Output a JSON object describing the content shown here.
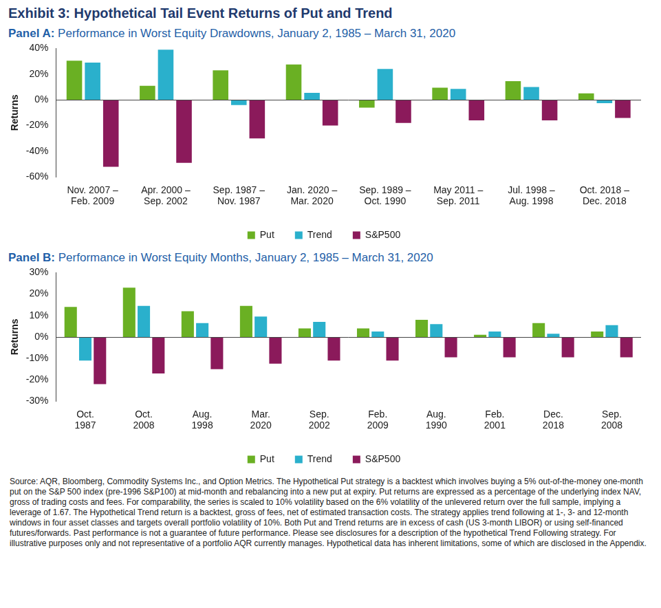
{
  "header": {
    "title": "Exhibit 3: Hypothetical Tail Event Returns of Put and Trend"
  },
  "chart_data": [
    {
      "type": "bar",
      "panel": "Panel A:",
      "title": "Performance in Worst Equity Drawdowns, January 2, 1985 – March 31, 2020",
      "y_label": "Returns",
      "categories": [
        [
          "Nov. 2007 –",
          "Feb. 2009"
        ],
        [
          "Apr. 2000 –",
          "Sep. 2002"
        ],
        [
          "Sep. 1987 –",
          "Nov. 1987"
        ],
        [
          "Jan. 2020 –",
          "Mar. 2020"
        ],
        [
          "Sep. 1989 –",
          "Oct. 1990"
        ],
        [
          "May 2011 –",
          "Sep. 2011"
        ],
        [
          "Jul. 1998 –",
          "Aug. 1998"
        ],
        [
          "Oct. 2018 –",
          "Dec. 2018"
        ]
      ],
      "series": [
        {
          "name": "Put",
          "color": "#6ab023",
          "values": [
            30.5,
            11,
            23,
            27.5,
            -6,
            9.5,
            14.5,
            5
          ]
        },
        {
          "name": "Trend",
          "color": "#2ab0cc",
          "values": [
            29,
            39,
            -4,
            5.5,
            24,
            8.5,
            10,
            -2.5
          ]
        },
        {
          "name": "S&P500",
          "color": "#8b1a5b",
          "values": [
            -52,
            -49,
            -30,
            -20,
            -18,
            -16,
            -16,
            -14
          ]
        }
      ],
      "ylim": [
        -60,
        40
      ],
      "yticks": [
        {
          "value": -60,
          "label": "-60%"
        },
        {
          "value": -40,
          "label": "-40%"
        },
        {
          "value": -20,
          "label": "-20%"
        },
        {
          "value": 0,
          "label": "0%"
        },
        {
          "value": 20,
          "label": "20%"
        },
        {
          "value": 40,
          "label": "40%"
        }
      ],
      "grid": false,
      "legend": "bottom"
    },
    {
      "type": "bar",
      "panel": "Panel B:",
      "title": "Performance in Worst Equity Months, January 2, 1985 – March 31, 2020",
      "y_label": "Returns",
      "categories": [
        [
          "Oct.",
          "1987"
        ],
        [
          "Oct.",
          "2008"
        ],
        [
          "Aug.",
          "1998"
        ],
        [
          "Mar.",
          "2020"
        ],
        [
          "Sep.",
          "2002"
        ],
        [
          "Feb.",
          "2009"
        ],
        [
          "Aug.",
          "1990"
        ],
        [
          "Feb.",
          "2001"
        ],
        [
          "Dec.",
          "2018"
        ],
        [
          "Sep.",
          "2008"
        ]
      ],
      "series": [
        {
          "name": "Put",
          "color": "#6ab023",
          "values": [
            14,
            23,
            12,
            14.5,
            4,
            4,
            8,
            1,
            6.5,
            2.5
          ]
        },
        {
          "name": "Trend",
          "color": "#2ab0cc",
          "values": [
            -11,
            14.5,
            6.5,
            9.5,
            7,
            2.5,
            6,
            2.5,
            1.5,
            5.5
          ]
        },
        {
          "name": "S&P500",
          "color": "#8b1a5b",
          "values": [
            -22,
            -17,
            -15,
            -12.5,
            -11,
            -11,
            -9.5,
            -9.5,
            -9.5,
            -9.5
          ]
        }
      ],
      "ylim": [
        -30,
        30
      ],
      "yticks": [
        {
          "value": -30,
          "label": "-30%"
        },
        {
          "value": -20,
          "label": "-20%"
        },
        {
          "value": -10,
          "label": "-10%"
        },
        {
          "value": 0,
          "label": "0%"
        },
        {
          "value": 10,
          "label": "10%"
        },
        {
          "value": 20,
          "label": "20%"
        },
        {
          "value": 30,
          "label": "30%"
        }
      ],
      "grid": false,
      "legend": "bottom"
    }
  ],
  "footnote": "Source: AQR, Bloomberg, Commodity Systems Inc., and Option Metrics. The Hypothetical Put strategy is a backtest which involves buying a 5% out-of-the-money one-month put on the S&P 500 index (pre-1996 S&P100) at mid-month and rebalancing into a new put at expiry. Put returns are expressed as a percentage of the underlying index NAV, gross of trading costs and fees. For comparability, the series is scaled to 10% volatility based on the 6% volatility of the unlevered return over the full sample, implying a leverage of 1.67. The Hypothetical Trend return is a backtest, gross of fees, net of estimated transaction costs. The strategy applies trend following at 1-, 3- and 12-month windows in four asset classes and targets overall portfolio volatility of 10%. Both Put and Trend returns are in excess of cash (US 3-month LIBOR) or using self-financed futures/forwards. Past performance is not a guarantee of future performance. Please see disclosures for a description of the hypothetical Trend Following strategy. For illustrative purposes only and not representative of a portfolio AQR currently manages. Hypothetical data has inherent limitations, some of which are disclosed in the Appendix."
}
